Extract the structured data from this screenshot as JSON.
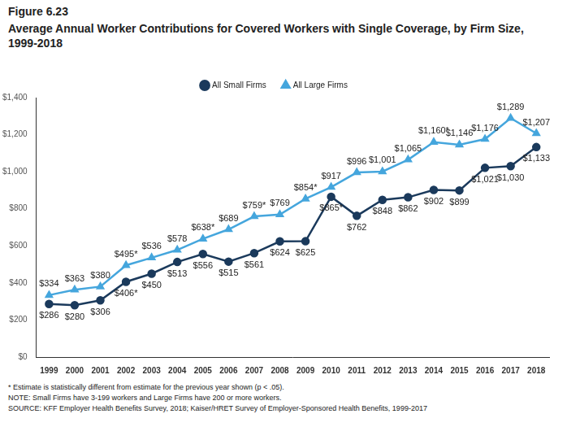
{
  "chart_data": {
    "type": "line",
    "title": "Figure 6.23",
    "subtitle": "Average Annual Worker Contributions for Covered Workers with Single Coverage, by Firm Size, 1999-2018",
    "annotations": [
      "* Estimate is statistically different from estimate for the previous year shown (p < .05).",
      "NOTE: Small Firms have 3-199 workers and Large Firms have 200 or more workers.",
      "SOURCE: KFF Employer Health Benefits Survey, 2018; Kaiser/HRET Survey of Employer-Sponsored Health Benefits, 1999-2017"
    ],
    "categories": [
      "1999",
      "2000",
      "2001",
      "2002",
      "2003",
      "2004",
      "2005",
      "2006",
      "2007",
      "2008",
      "2009",
      "2010",
      "2011",
      "2012",
      "2013",
      "2014",
      "2015",
      "2016",
      "2017",
      "2018"
    ],
    "series": [
      {
        "name": "All Small Firms",
        "color": "#1b3a5c",
        "marker": "circle",
        "values": [
          286,
          280,
          306,
          406,
          450,
          513,
          556,
          515,
          561,
          624,
          625,
          865,
          762,
          848,
          862,
          902,
          899,
          1021,
          1030,
          1133
        ],
        "value_labels": [
          "$286",
          "$280",
          "$306",
          "$406*",
          "$450",
          "$513",
          "$556",
          "$515",
          "$561",
          "$624",
          "$625",
          "$865*",
          "$762",
          "$848",
          "$862",
          "$902",
          "$899",
          "$1,021",
          "$1,030",
          "$1,133"
        ]
      },
      {
        "name": "All Large Firms",
        "color": "#45a6dd",
        "marker": "triangle",
        "values": [
          334,
          363,
          380,
          495,
          536,
          578,
          638,
          689,
          759,
          769,
          854,
          917,
          996,
          1001,
          1065,
          1160,
          1146,
          1176,
          1289,
          1207
        ],
        "value_labels": [
          "$334",
          "$363",
          "$380",
          "$495*",
          "$536",
          "$578",
          "$638*",
          "$689",
          "$759*",
          "$769",
          "$854*",
          "$917",
          "$996",
          "$1,001",
          "$1,065",
          "$1,160*",
          "$1,146",
          "$1,176",
          "$1,289",
          "$1,207"
        ]
      }
    ],
    "ylim": [
      0,
      1400
    ],
    "yticks": [
      {
        "value": 0,
        "label": "$0"
      },
      {
        "value": 200,
        "label": "$200"
      },
      {
        "value": 400,
        "label": "$400"
      },
      {
        "value": 600,
        "label": "$600"
      },
      {
        "value": 800,
        "label": "$800"
      },
      {
        "value": 1000,
        "label": "$1,000"
      },
      {
        "value": 1200,
        "label": "$1,200"
      },
      {
        "value": 1400,
        "label": "$1,400"
      }
    ],
    "grid": false,
    "legend": "top",
    "data_labels": true
  }
}
